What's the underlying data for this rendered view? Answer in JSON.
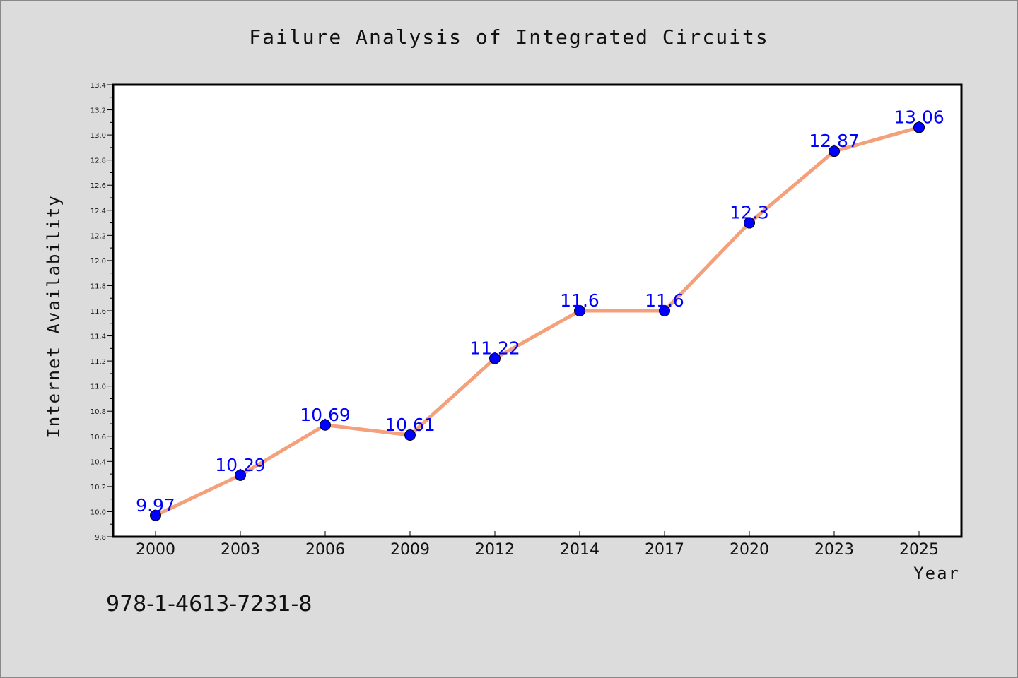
{
  "chart_data": {
    "type": "line",
    "title": "Failure Analysis of Integrated Circuits",
    "xlabel": "Year",
    "ylabel": "Internet Availability",
    "categories": [
      "2000",
      "2003",
      "2006",
      "2009",
      "2012",
      "2014",
      "2017",
      "2020",
      "2023",
      "2025"
    ],
    "series": [
      {
        "values": [
          9.97,
          10.29,
          10.69,
          10.61,
          11.22,
          11.6,
          11.6,
          12.3,
          12.87,
          13.06
        ]
      }
    ],
    "data_labels": [
      "9.97",
      "10.29",
      "10.69",
      "10.61",
      "11.22",
      "11.6",
      "11.6",
      "12.3",
      "12.87",
      "13.06"
    ],
    "ylim": [
      9.8,
      13.4
    ],
    "yticks": [
      "9.8",
      "10.0",
      "10.2",
      "10.4",
      "10.6",
      "10.8",
      "11.0",
      "11.2",
      "11.4",
      "11.6",
      "11.8",
      "12.0",
      "12.2",
      "12.4",
      "12.6",
      "12.8",
      "13.0",
      "13.2",
      "13.4"
    ],
    "grid": false,
    "line_color": "#f4a07a",
    "marker_color": "#0000ff",
    "label_color": "#0000ff",
    "background": "#dcdcdc",
    "plot_background": "#ffffff"
  },
  "footer": {
    "isbn": "978-1-4613-7231-8"
  }
}
